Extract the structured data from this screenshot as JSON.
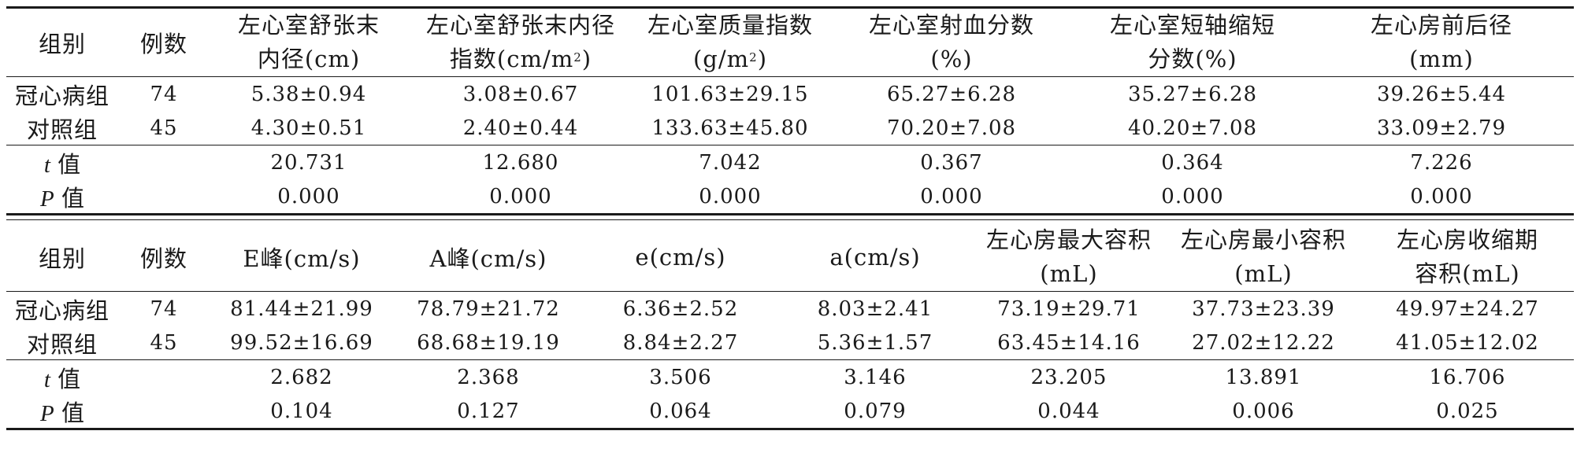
{
  "table1": {
    "headers": {
      "group": "组别",
      "n": "例数",
      "c1": [
        "左心室舒张末",
        "内径(cm)"
      ],
      "c2": [
        "左心室舒张末内径",
        "指数(cm/m",
        "2",
        ")"
      ],
      "c3": [
        "左心室质量指数",
        "(g/m",
        "2",
        ")"
      ],
      "c4": [
        "左心室射血分数",
        "(%)"
      ],
      "c5": [
        "左心室短轴缩短",
        "分数(%)"
      ],
      "c6": [
        "左心房前后径",
        "(mm)"
      ]
    },
    "rows": [
      {
        "group": "冠心病组",
        "n": "74",
        "v": [
          "5.38±0.94",
          "3.08±0.67",
          "101.63±29.15",
          "65.27±6.28",
          "35.27±6.28",
          "39.26±5.44"
        ]
      },
      {
        "group": "对照组",
        "n": "45",
        "v": [
          "4.30±0.51",
          "2.40±0.44",
          "133.63±45.80",
          "70.20±7.08",
          "40.20±7.08",
          "33.09±2.79"
        ]
      }
    ],
    "t_row": {
      "label_italic": "t",
      "label": "值",
      "v": [
        "20.731",
        "12.680",
        "7.042",
        "0.367",
        "0.364",
        "7.226"
      ]
    },
    "p_row": {
      "label_italic": "P",
      "label": "值",
      "v": [
        "0.000",
        "0.000",
        "0.000",
        "0.000",
        "0.000",
        "0.000"
      ]
    }
  },
  "table2": {
    "headers": {
      "group": "组别",
      "n": "例数",
      "c1": "E峰(cm/s)",
      "c2": "A峰(cm/s)",
      "c3": "e(cm/s)",
      "c4": "a(cm/s)",
      "c5": [
        "左心房最大容积",
        "(mL)"
      ],
      "c6": [
        "左心房最小容积",
        "(mL)"
      ],
      "c7": [
        "左心房收缩期",
        "容积(mL)"
      ]
    },
    "rows": [
      {
        "group": "冠心病组",
        "n": "74",
        "v": [
          "81.44±21.99",
          "78.79±21.72",
          "6.36±2.52",
          "8.03±2.41",
          "73.19±29.71",
          "37.73±23.39",
          "49.97±24.27"
        ]
      },
      {
        "group": "对照组",
        "n": "45",
        "v": [
          "99.52±16.69",
          "68.68±19.19",
          "8.84±2.27",
          "5.36±1.57",
          "63.45±14.16",
          "27.02±12.22",
          "41.05±12.02"
        ]
      }
    ],
    "t_row": {
      "label_italic": "t",
      "label": "值",
      "v": [
        "2.682",
        "2.368",
        "3.506",
        "3.146",
        "23.205",
        "13.891",
        "16.706"
      ]
    },
    "p_row": {
      "label_italic": "P",
      "label": "值",
      "v": [
        "0.104",
        "0.127",
        "0.064",
        "0.079",
        "0.044",
        "0.006",
        "0.025"
      ]
    }
  }
}
